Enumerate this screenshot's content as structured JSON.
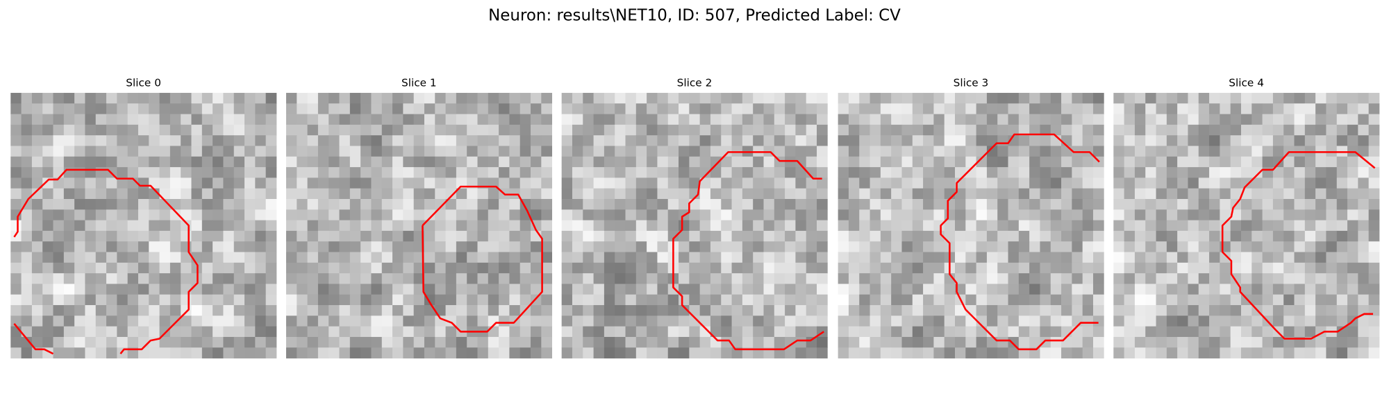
{
  "title": "Neuron: results\\NET10, ID: 507, Predicted Label: CV",
  "panels": [
    {
      "title": "Slice 0"
    },
    {
      "title": "Slice 1"
    },
    {
      "title": "Slice 2"
    },
    {
      "title": "Slice 3"
    },
    {
      "title": "Slice 4"
    }
  ]
}
